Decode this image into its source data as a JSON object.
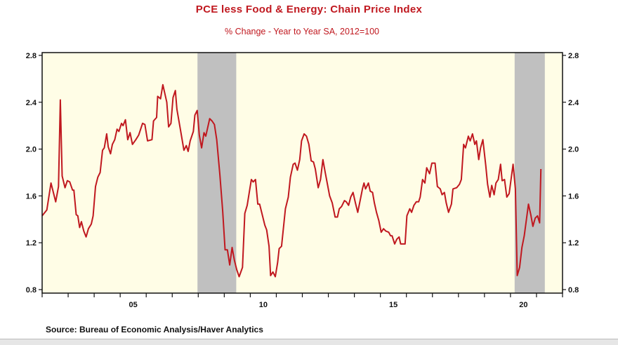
{
  "chart_data": {
    "type": "line",
    "title": "PCE less Food & Energy: Chain Price Index",
    "subtitle": "% Change - Year to Year    SA, 2012=100",
    "source": "Source:  Bureau of Economic Analysis/Haver Analytics",
    "xlabel": "",
    "ylabel": "",
    "xlim": [
      2002,
      2022
    ],
    "ylim": [
      0.8,
      2.8
    ],
    "y_ticks": [
      "0.8",
      "1.2",
      "1.6",
      "2.0",
      "2.4",
      "2.8"
    ],
    "x_tick_labels": [
      {
        "year": 2005,
        "label": "05"
      },
      {
        "year": 2010,
        "label": "10"
      },
      {
        "year": 2015,
        "label": "15"
      },
      {
        "year": 2020,
        "label": "20"
      }
    ],
    "grid": false,
    "axes": "y-axis on both left and right",
    "background_color": "#fffde6",
    "line_color": "#c0181f",
    "recession_color": "#c0c0c0",
    "recessions": [
      [
        2007.97,
        2009.46
      ],
      [
        2020.16,
        2021.32
      ]
    ],
    "series": [
      {
        "points": [
          [
            2002.0,
            1.43
          ],
          [
            2002.18,
            1.48
          ],
          [
            2002.34,
            1.71
          ],
          [
            2002.52,
            1.55
          ],
          [
            2002.63,
            1.68
          ],
          [
            2002.7,
            2.42
          ],
          [
            2002.77,
            1.77
          ],
          [
            2002.88,
            1.67
          ],
          [
            2002.97,
            1.73
          ],
          [
            2003.06,
            1.72
          ],
          [
            2003.17,
            1.65
          ],
          [
            2003.22,
            1.65
          ],
          [
            2003.31,
            1.44
          ],
          [
            2003.37,
            1.43
          ],
          [
            2003.44,
            1.33
          ],
          [
            2003.51,
            1.38
          ],
          [
            2003.6,
            1.3
          ],
          [
            2003.69,
            1.25
          ],
          [
            2003.78,
            1.32
          ],
          [
            2003.89,
            1.36
          ],
          [
            2003.96,
            1.43
          ],
          [
            2004.05,
            1.68
          ],
          [
            2004.14,
            1.76
          ],
          [
            2004.23,
            1.8
          ],
          [
            2004.32,
            1.99
          ],
          [
            2004.39,
            2.01
          ],
          [
            2004.48,
            2.13
          ],
          [
            2004.54,
            2.02
          ],
          [
            2004.63,
            1.96
          ],
          [
            2004.7,
            2.04
          ],
          [
            2004.79,
            2.08
          ],
          [
            2004.88,
            2.17
          ],
          [
            2004.95,
            2.15
          ],
          [
            2005.05,
            2.22
          ],
          [
            2005.11,
            2.2
          ],
          [
            2005.2,
            2.25
          ],
          [
            2005.29,
            2.08
          ],
          [
            2005.38,
            2.14
          ],
          [
            2005.47,
            2.04
          ],
          [
            2005.6,
            2.08
          ],
          [
            2005.71,
            2.12
          ],
          [
            2005.86,
            2.22
          ],
          [
            2005.95,
            2.21
          ],
          [
            2006.05,
            2.07
          ],
          [
            2006.22,
            2.08
          ],
          [
            2006.28,
            2.24
          ],
          [
            2006.4,
            2.27
          ],
          [
            2006.44,
            2.45
          ],
          [
            2006.55,
            2.43
          ],
          [
            2006.64,
            2.55
          ],
          [
            2006.79,
            2.4
          ],
          [
            2006.86,
            2.19
          ],
          [
            2006.95,
            2.22
          ],
          [
            2007.03,
            2.44
          ],
          [
            2007.12,
            2.5
          ],
          [
            2007.18,
            2.34
          ],
          [
            2007.32,
            2.16
          ],
          [
            2007.45,
            1.99
          ],
          [
            2007.54,
            2.03
          ],
          [
            2007.61,
            1.98
          ],
          [
            2007.69,
            2.07
          ],
          [
            2007.81,
            2.15
          ],
          [
            2007.87,
            2.29
          ],
          [
            2007.96,
            2.33
          ],
          [
            2008.04,
            2.12
          ],
          [
            2008.13,
            2.01
          ],
          [
            2008.22,
            2.14
          ],
          [
            2008.29,
            2.11
          ],
          [
            2008.44,
            2.26
          ],
          [
            2008.53,
            2.24
          ],
          [
            2008.62,
            2.21
          ],
          [
            2008.71,
            2.08
          ],
          [
            2008.83,
            1.78
          ],
          [
            2008.94,
            1.47
          ],
          [
            2009.03,
            1.14
          ],
          [
            2009.12,
            1.14
          ],
          [
            2009.21,
            1.01
          ],
          [
            2009.3,
            1.16
          ],
          [
            2009.39,
            1.05
          ],
          [
            2009.48,
            0.97
          ],
          [
            2009.57,
            0.91
          ],
          [
            2009.7,
            0.99
          ],
          [
            2009.79,
            1.45
          ],
          [
            2009.88,
            1.52
          ],
          [
            2010.04,
            1.74
          ],
          [
            2010.11,
            1.72
          ],
          [
            2010.2,
            1.74
          ],
          [
            2010.29,
            1.53
          ],
          [
            2010.36,
            1.53
          ],
          [
            2010.47,
            1.43
          ],
          [
            2010.56,
            1.35
          ],
          [
            2010.63,
            1.31
          ],
          [
            2010.72,
            1.17
          ],
          [
            2010.78,
            0.92
          ],
          [
            2010.87,
            0.95
          ],
          [
            2010.96,
            0.91
          ],
          [
            2011.05,
            1.03
          ],
          [
            2011.11,
            1.15
          ],
          [
            2011.2,
            1.17
          ],
          [
            2011.35,
            1.49
          ],
          [
            2011.46,
            1.59
          ],
          [
            2011.54,
            1.76
          ],
          [
            2011.65,
            1.87
          ],
          [
            2011.72,
            1.88
          ],
          [
            2011.81,
            1.82
          ],
          [
            2011.9,
            1.91
          ],
          [
            2011.97,
            2.07
          ],
          [
            2012.07,
            2.13
          ],
          [
            2012.16,
            2.11
          ],
          [
            2012.25,
            2.04
          ],
          [
            2012.34,
            1.9
          ],
          [
            2012.43,
            1.89
          ],
          [
            2012.5,
            1.83
          ],
          [
            2012.61,
            1.67
          ],
          [
            2012.7,
            1.74
          ],
          [
            2012.79,
            1.91
          ],
          [
            2012.88,
            1.8
          ],
          [
            2013.05,
            1.6
          ],
          [
            2013.15,
            1.54
          ],
          [
            2013.26,
            1.42
          ],
          [
            2013.35,
            1.42
          ],
          [
            2013.42,
            1.49
          ],
          [
            2013.51,
            1.51
          ],
          [
            2013.62,
            1.56
          ],
          [
            2013.69,
            1.55
          ],
          [
            2013.78,
            1.52
          ],
          [
            2013.86,
            1.59
          ],
          [
            2013.95,
            1.63
          ],
          [
            2014.04,
            1.54
          ],
          [
            2014.13,
            1.46
          ],
          [
            2014.22,
            1.56
          ],
          [
            2014.31,
            1.66
          ],
          [
            2014.37,
            1.71
          ],
          [
            2014.43,
            1.66
          ],
          [
            2014.54,
            1.71
          ],
          [
            2014.61,
            1.64
          ],
          [
            2014.7,
            1.63
          ],
          [
            2014.77,
            1.54
          ],
          [
            2014.85,
            1.46
          ],
          [
            2014.94,
            1.39
          ],
          [
            2015.03,
            1.29
          ],
          [
            2015.12,
            1.32
          ],
          [
            2015.21,
            1.3
          ],
          [
            2015.32,
            1.29
          ],
          [
            2015.39,
            1.26
          ],
          [
            2015.45,
            1.26
          ],
          [
            2015.55,
            1.19
          ],
          [
            2015.63,
            1.23
          ],
          [
            2015.72,
            1.25
          ],
          [
            2015.78,
            1.19
          ],
          [
            2015.95,
            1.19
          ],
          [
            2016.02,
            1.43
          ],
          [
            2016.13,
            1.49
          ],
          [
            2016.2,
            1.46
          ],
          [
            2016.29,
            1.52
          ],
          [
            2016.38,
            1.55
          ],
          [
            2016.47,
            1.55
          ],
          [
            2016.53,
            1.59
          ],
          [
            2016.62,
            1.74
          ],
          [
            2016.71,
            1.71
          ],
          [
            2016.78,
            1.84
          ],
          [
            2016.89,
            1.79
          ],
          [
            2016.98,
            1.88
          ],
          [
            2017.1,
            1.88
          ],
          [
            2017.19,
            1.68
          ],
          [
            2017.3,
            1.66
          ],
          [
            2017.37,
            1.61
          ],
          [
            2017.46,
            1.63
          ],
          [
            2017.53,
            1.54
          ],
          [
            2017.62,
            1.46
          ],
          [
            2017.73,
            1.53
          ],
          [
            2017.79,
            1.66
          ],
          [
            2017.93,
            1.67
          ],
          [
            2018.04,
            1.7
          ],
          [
            2018.11,
            1.74
          ],
          [
            2018.2,
            2.04
          ],
          [
            2018.27,
            2.01
          ],
          [
            2018.38,
            2.11
          ],
          [
            2018.45,
            2.07
          ],
          [
            2018.54,
            2.13
          ],
          [
            2018.63,
            2.04
          ],
          [
            2018.69,
            2.07
          ],
          [
            2018.78,
            1.91
          ],
          [
            2018.85,
            2.01
          ],
          [
            2018.94,
            2.08
          ],
          [
            2019.05,
            1.86
          ],
          [
            2019.12,
            1.7
          ],
          [
            2019.21,
            1.59
          ],
          [
            2019.28,
            1.69
          ],
          [
            2019.37,
            1.61
          ],
          [
            2019.44,
            1.71
          ],
          [
            2019.53,
            1.74
          ],
          [
            2019.62,
            1.87
          ],
          [
            2019.68,
            1.73
          ],
          [
            2019.77,
            1.74
          ],
          [
            2019.86,
            1.59
          ],
          [
            2019.95,
            1.62
          ],
          [
            2020.1,
            1.87
          ],
          [
            2020.19,
            1.66
          ],
          [
            2020.26,
            0.92
          ],
          [
            2020.35,
            0.99
          ],
          [
            2020.44,
            1.16
          ],
          [
            2020.53,
            1.26
          ],
          [
            2020.69,
            1.53
          ],
          [
            2020.78,
            1.44
          ],
          [
            2020.86,
            1.34
          ],
          [
            2020.95,
            1.41
          ],
          [
            2021.04,
            1.43
          ],
          [
            2021.12,
            1.37
          ],
          [
            2021.17,
            1.83
          ]
        ]
      }
    ]
  }
}
